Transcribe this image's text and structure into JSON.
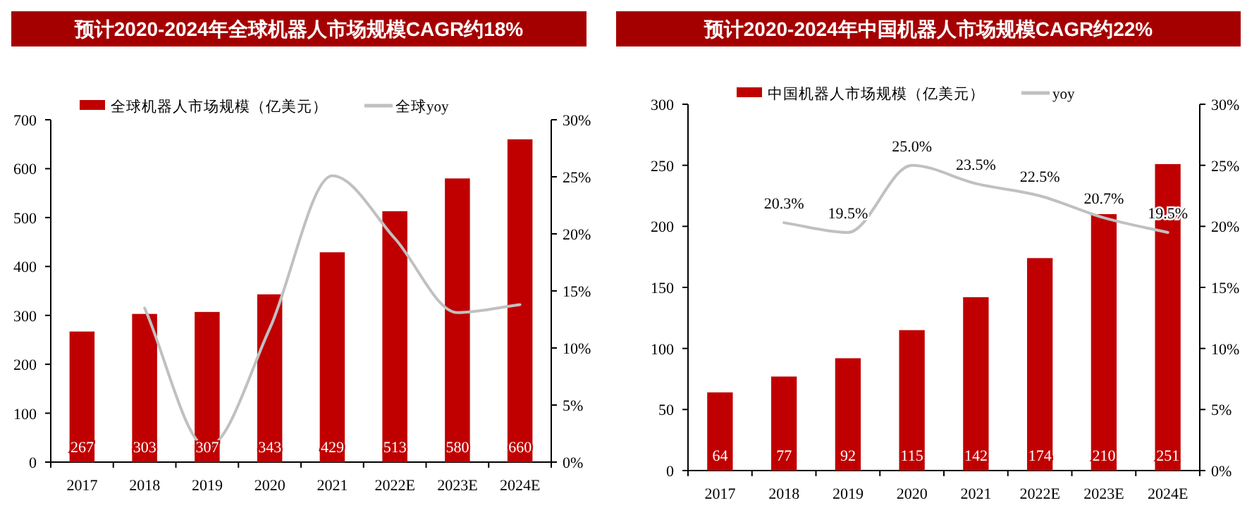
{
  "chart_data": [
    {
      "type": "bar",
      "title": "预计2020-2024年全球机器人市场规模CAGR约18%",
      "categories": [
        "2017",
        "2018",
        "2019",
        "2020",
        "2021",
        "2022E",
        "2023E",
        "2024E"
      ],
      "series": [
        {
          "name": "全球机器人市场规模（亿美元）",
          "color": "#c00000",
          "values": [
            267,
            303,
            307,
            343,
            429,
            513,
            580,
            660
          ],
          "value_labels": [
            "267",
            "303",
            "307",
            "343",
            "429",
            "513",
            "580",
            "660"
          ]
        },
        {
          "name": "全球yoy",
          "type": "line",
          "axis": "y2",
          "color": "#c0c0c0",
          "values": [
            null,
            13.5,
            1.3,
            11.7,
            25.1,
            19.6,
            13.1,
            13.8
          ]
        }
      ],
      "ylim": [
        0,
        700
      ],
      "yticks": [
        0,
        100,
        200,
        300,
        400,
        500,
        600,
        700
      ],
      "y2lim": [
        0,
        30
      ],
      "y2ticks": [
        {
          "value": 0,
          "label": "0%"
        },
        {
          "value": 5,
          "label": "5%"
        },
        {
          "value": 10,
          "label": "10%"
        },
        {
          "value": 15,
          "label": "15%"
        },
        {
          "value": 20,
          "label": "20%"
        },
        {
          "value": 25,
          "label": "25%"
        },
        {
          "value": 30,
          "label": "30%"
        }
      ],
      "legend": "top"
    },
    {
      "type": "bar",
      "title": "预计2020-2024年中国机器人市场规模CAGR约22%",
      "categories": [
        "2017",
        "2018",
        "2019",
        "2020",
        "2021",
        "2022E",
        "2023E",
        "2024E"
      ],
      "series": [
        {
          "name": "中国机器人市场规模（亿美元）",
          "color": "#c00000",
          "values": [
            64,
            77,
            92,
            115,
            142,
            174,
            210,
            251
          ],
          "value_labels": [
            "64",
            "77",
            "92",
            "115",
            "142",
            "174",
            "210",
            "251"
          ]
        },
        {
          "name": "yoy",
          "type": "line",
          "axis": "y2",
          "color": "#c0c0c0",
          "values": [
            null,
            20.3,
            19.5,
            25.0,
            23.5,
            22.5,
            20.7,
            19.5
          ],
          "value_labels": [
            null,
            "20.3%",
            "19.5%",
            "25.0%",
            "23.5%",
            "22.5%",
            "20.7%",
            "19.5%"
          ]
        }
      ],
      "ylim": [
        0,
        300
      ],
      "yticks": [
        0,
        50,
        100,
        150,
        200,
        250,
        300
      ],
      "y2lim": [
        0,
        30
      ],
      "y2ticks": [
        {
          "value": 0,
          "label": "0%"
        },
        {
          "value": 5,
          "label": "5%"
        },
        {
          "value": 10,
          "label": "10%"
        },
        {
          "value": 15,
          "label": "15%"
        },
        {
          "value": 20,
          "label": "20%"
        },
        {
          "value": 25,
          "label": "25%"
        },
        {
          "value": 30,
          "label": "30%"
        }
      ],
      "legend": "top"
    }
  ]
}
